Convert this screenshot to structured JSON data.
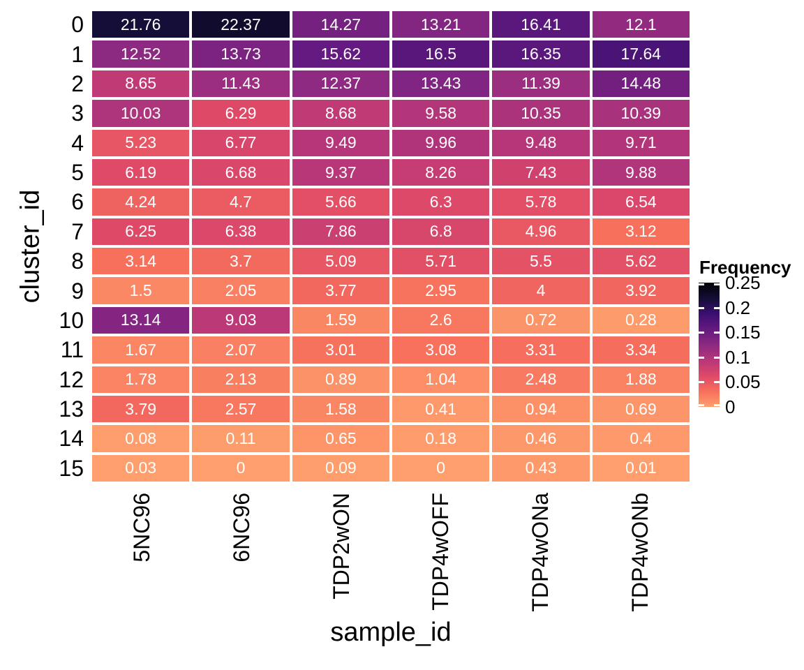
{
  "figure": {
    "background_color": "#FFFFFF",
    "axis_text_color": "#000000"
  },
  "chart_data": {
    "type": "heatmap",
    "title": "",
    "xlabel": "sample_id",
    "ylabel": "cluster_id",
    "columns": [
      "5NC96",
      "6NC96",
      "TDP2wON",
      "TDP4wOFF",
      "TDP4wONa",
      "TDP4wONb"
    ],
    "rows": [
      "0",
      "1",
      "2",
      "3",
      "4",
      "5",
      "6",
      "7",
      "8",
      "9",
      "10",
      "11",
      "12",
      "13",
      "14",
      "15"
    ],
    "values": [
      [
        21.76,
        22.37,
        14.27,
        13.21,
        16.41,
        12.1
      ],
      [
        12.52,
        13.73,
        15.62,
        16.5,
        16.35,
        17.64
      ],
      [
        8.65,
        11.43,
        12.37,
        13.43,
        11.39,
        14.48
      ],
      [
        10.03,
        6.29,
        8.68,
        9.58,
        10.35,
        10.39
      ],
      [
        5.23,
        6.77,
        9.49,
        9.96,
        9.48,
        9.71
      ],
      [
        6.19,
        6.68,
        9.37,
        8.26,
        7.43,
        9.88
      ],
      [
        4.24,
        4.7,
        5.66,
        6.3,
        5.78,
        6.54
      ],
      [
        6.25,
        6.38,
        7.86,
        6.8,
        4.96,
        3.12
      ],
      [
        3.14,
        3.7,
        5.09,
        5.71,
        5.5,
        5.62
      ],
      [
        1.5,
        2.05,
        3.77,
        2.95,
        4,
        3.92
      ],
      [
        13.14,
        9.03,
        1.59,
        2.6,
        0.72,
        0.28
      ],
      [
        1.67,
        2.07,
        3.01,
        3.08,
        3.31,
        3.34
      ],
      [
        1.78,
        2.13,
        0.89,
        1.04,
        2.48,
        1.88
      ],
      [
        3.79,
        2.57,
        1.58,
        0.41,
        0.94,
        0.69
      ],
      [
        0.08,
        0.11,
        0.65,
        0.18,
        0.46,
        0.4
      ],
      [
        0.03,
        0,
        0.09,
        0,
        0.43,
        0.01
      ]
    ],
    "values_unit": "percent",
    "cell_text_color": "#FFFFFF",
    "legend": {
      "title": "Frequency",
      "tick_labels": [
        "0.25",
        "0.2",
        "0.15",
        "0.1",
        "0.05",
        "0"
      ],
      "domain": [
        0,
        0.25
      ],
      "position": "right"
    },
    "colormap": {
      "name": "magma-reversed",
      "position_range": [
        0,
        0.8
      ],
      "stops": [
        "#000004",
        "#140E36",
        "#3B0F70",
        "#641A80",
        "#8C2981",
        "#B73779",
        "#DE4968",
        "#F7705C",
        "#FE9F6D"
      ]
    },
    "layout_hints": {
      "grid": "off",
      "tile_border_color": "#FFFFFF"
    }
  }
}
